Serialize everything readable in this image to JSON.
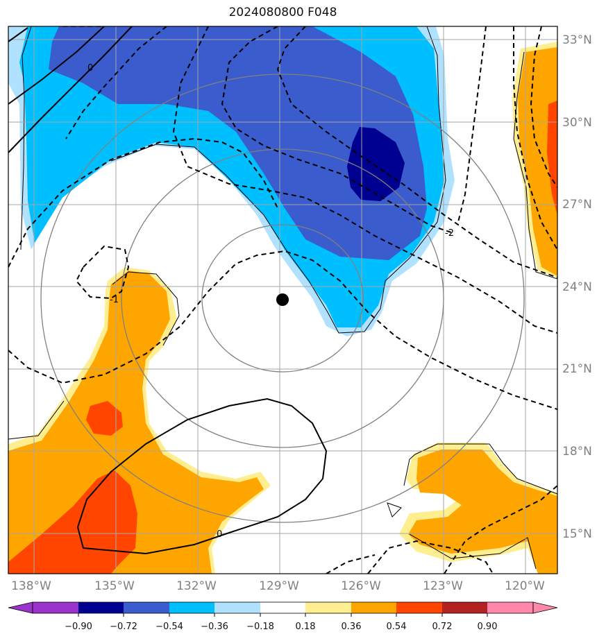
{
  "title": "2024080800 F048",
  "map": {
    "lon_ticks": [
      "138°W",
      "135°W",
      "132°W",
      "129°W",
      "126°W",
      "123°W",
      "120°W"
    ],
    "lat_ticks": [
      "33°N",
      "30°N",
      "27°N",
      "24°N",
      "21°N",
      "18°N",
      "15°N"
    ],
    "storm_center": {
      "lon": -129.0,
      "lat": 23.4
    },
    "range_rings_deg": [
      3,
      6,
      9
    ],
    "contour_labels": [
      "0",
      "-2",
      "-1",
      "0"
    ]
  },
  "colorbar": {
    "tick_labels": [
      "−0.90",
      "−0.72",
      "−0.54",
      "−0.36",
      "−0.18",
      "0.18",
      "0.36",
      "0.54",
      "0.72",
      "0.90"
    ],
    "colors": [
      "#9933cc",
      "#000090",
      "#3a5ccc",
      "#00bfff",
      "#b0e2ff",
      "#ffffff",
      "#ffee90",
      "#ffa500",
      "#ff4500",
      "#b22222",
      "#ff88aa"
    ]
  }
}
